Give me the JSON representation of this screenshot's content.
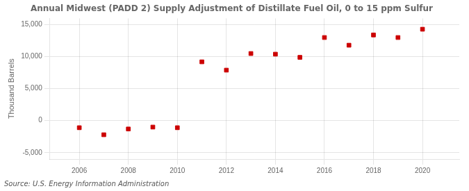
{
  "chart_data": {
    "type": "scatter",
    "title": "Annual Midwest (PADD 2) Supply Adjustment of Distillate Fuel Oil, 0 to 15 ppm Sulfur",
    "ylabel": "Thousand Barrels",
    "source": "Source: U.S. Energy Information Administration",
    "x": [
      2006,
      2007,
      2008,
      2009,
      2010,
      2011,
      2012,
      2013,
      2014,
      2015,
      2016,
      2017,
      2018,
      2019,
      2020
    ],
    "values": [
      -1100,
      -2200,
      -1300,
      -1000,
      -1100,
      9200,
      7900,
      10500,
      10400,
      9900,
      13000,
      11800,
      13400,
      13000,
      14300
    ],
    "color": "#cc0000",
    "marker": "square",
    "xlim": [
      2004.8,
      2021.5
    ],
    "xticks": [
      2006,
      2008,
      2010,
      2012,
      2014,
      2016,
      2018,
      2020
    ],
    "ylim": [
      -6000,
      16000
    ],
    "yticks": [
      {
        "value": -5000,
        "label": "-5,000"
      },
      0,
      {
        "value": 5000,
        "label": "5,000"
      },
      {
        "value": 10000,
        "label": "10,000"
      },
      {
        "value": 15000,
        "label": "15,000"
      }
    ],
    "grid": true
  }
}
